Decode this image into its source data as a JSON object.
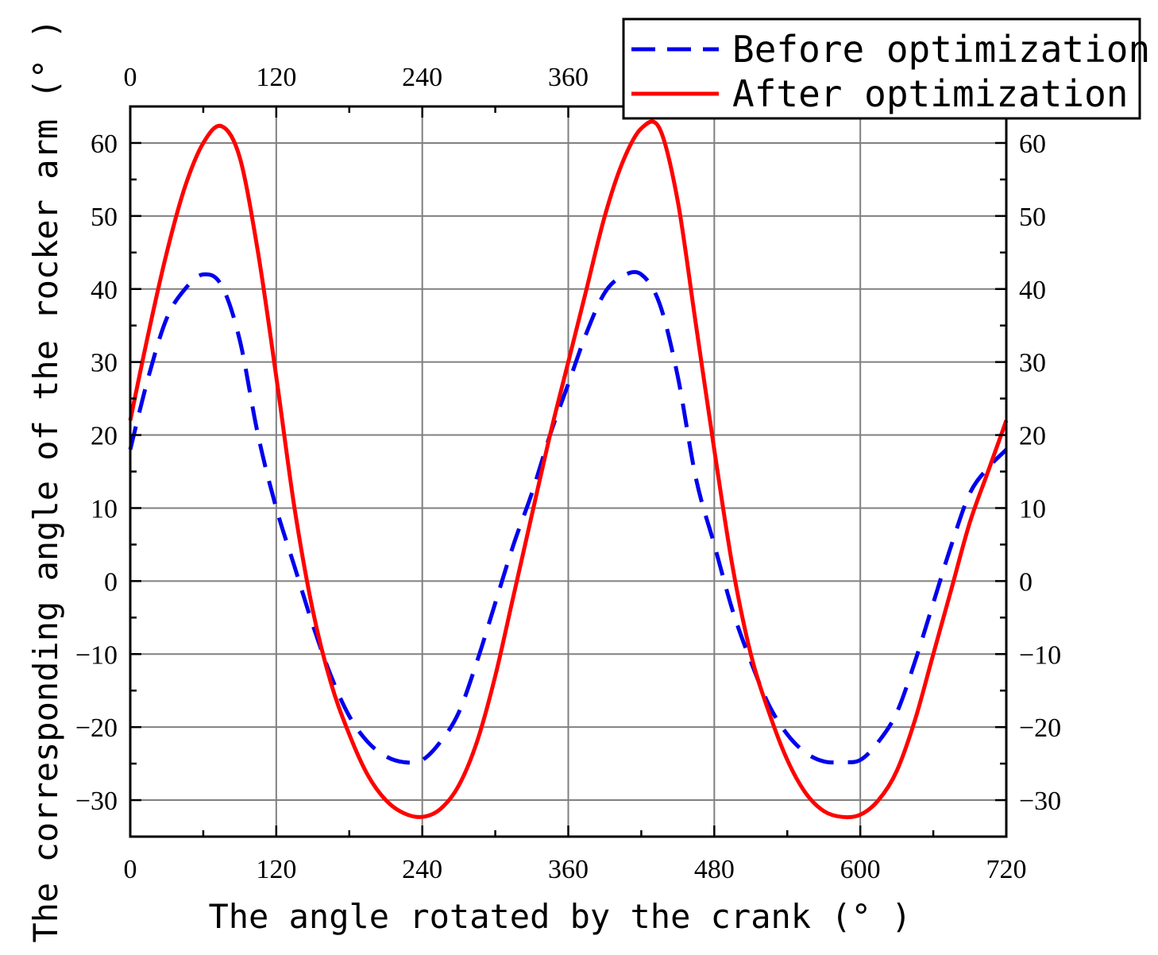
{
  "chart_data": {
    "type": "line",
    "title": "",
    "xlabel": "The angle rotated by the crank (° )",
    "ylabel": "The corresponding angle of the rocker arm (° )",
    "xlim": [
      0,
      720
    ],
    "ylim": [
      -35,
      65
    ],
    "x_ticks": [
      0,
      120,
      240,
      360,
      480,
      600,
      720
    ],
    "x_tick_labels": [
      "0",
      "120",
      "240",
      "360",
      "480",
      "600",
      "720"
    ],
    "top_x_tick_labels": [
      "0",
      "120",
      "240",
      "360"
    ],
    "y_ticks": [
      60,
      50,
      40,
      30,
      20,
      10,
      0,
      -10,
      -20,
      -30
    ],
    "y_tick_labels": [
      "60",
      "50",
      "40",
      "30",
      "20",
      "10",
      "0",
      "−10",
      "−20",
      "−30"
    ],
    "grid": true,
    "legend_position": "top-right",
    "series": [
      {
        "name": "Before optimization",
        "style": "dashed",
        "color": "#0000ee",
        "x": [
          0,
          15,
          30,
          45,
          60,
          75,
          90,
          105,
          120,
          135,
          150,
          165,
          180,
          195,
          210,
          225,
          240,
          255,
          270,
          285,
          300,
          315,
          330,
          345,
          360,
          375,
          390,
          405,
          420,
          435,
          450,
          465,
          480,
          495,
          510,
          525,
          540,
          555,
          570,
          585,
          600,
          615,
          630,
          645,
          660,
          675,
          690,
          705,
          720
        ],
        "values": [
          18,
          28,
          36,
          40,
          42,
          40.5,
          33,
          20,
          10,
          2,
          -6,
          -13,
          -18.5,
          -22,
          -24,
          -24.8,
          -24.5,
          -22,
          -18,
          -11,
          -3,
          5,
          12,
          20,
          27,
          34,
          39.5,
          41.8,
          42,
          38,
          28,
          14,
          5,
          -4,
          -11,
          -17,
          -21,
          -23.5,
          -24.7,
          -24.8,
          -24.5,
          -22,
          -18,
          -11,
          -3,
          5,
          12,
          15.5,
          18
        ]
      },
      {
        "name": "After optimization",
        "style": "solid",
        "color": "#ff0000",
        "x": [
          0,
          15,
          30,
          45,
          60,
          75,
          90,
          105,
          120,
          135,
          150,
          165,
          180,
          195,
          210,
          225,
          240,
          255,
          270,
          285,
          300,
          315,
          330,
          345,
          360,
          375,
          390,
          405,
          420,
          435,
          450,
          465,
          480,
          495,
          510,
          525,
          540,
          555,
          570,
          585,
          600,
          615,
          630,
          645,
          660,
          675,
          690,
          705,
          720
        ],
        "values": [
          22,
          34,
          45,
          54,
          60,
          62.3,
          58,
          45,
          28,
          10,
          -4,
          -14,
          -21,
          -26.5,
          -30,
          -31.8,
          -32.3,
          -31.2,
          -28,
          -22,
          -13,
          -2,
          9,
          20,
          30,
          40,
          50,
          57.5,
          62,
          62,
          52,
          35,
          18,
          2,
          -10,
          -18,
          -24.5,
          -29,
          -31.5,
          -32.3,
          -32,
          -30,
          -26,
          -19,
          -10,
          -1,
          8,
          15,
          22
        ]
      }
    ]
  }
}
